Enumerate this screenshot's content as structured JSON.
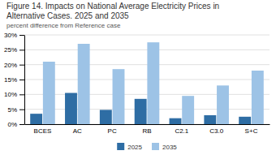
{
  "chart_data": {
    "type": "bar",
    "title": [
      "Figure 14. Impacts on National Average Electricity Prices in",
      "Alternative Cases. 2025 and 2035"
    ],
    "subtitle": "percent difference from Reference case",
    "categories": [
      "BCES",
      "AC",
      "PC",
      "RB",
      "C2.1",
      "C3.0",
      "S+C"
    ],
    "series": [
      {
        "name": "2025",
        "color": "#2e6da4",
        "values": [
          3.5,
          10.5,
          4.8,
          8.5,
          2.0,
          3.0,
          2.5
        ]
      },
      {
        "name": "2035",
        "color": "#9dc3e6",
        "values": [
          21.0,
          27.0,
          18.5,
          27.5,
          9.5,
          13.0,
          18.0
        ]
      }
    ],
    "ylim": [
      0,
      30
    ],
    "yticks": [
      {
        "value": 0,
        "label": "0%"
      },
      {
        "value": 5,
        "label": "5%"
      },
      {
        "value": 10,
        "label": "10%"
      },
      {
        "value": 15,
        "label": "15%"
      },
      {
        "value": 20,
        "label": "20%"
      },
      {
        "value": 25,
        "label": "25%"
      },
      {
        "value": 30,
        "label": "30%"
      }
    ],
    "grid": true,
    "legend": "bottom"
  }
}
